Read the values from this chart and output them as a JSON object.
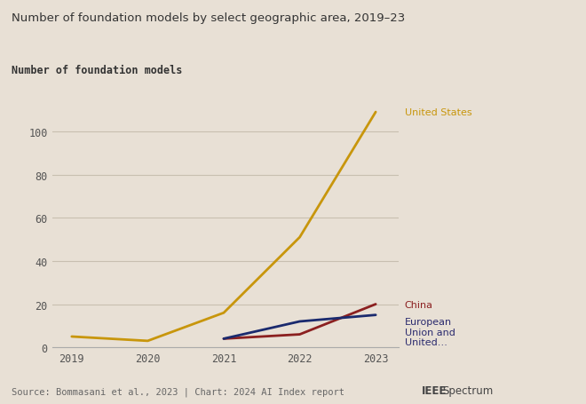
{
  "title": "Number of foundation models by select geographic area, 2019–23",
  "ylabel": "Number of foundation models",
  "background_color": "#e8e0d5",
  "plot_bg_color": "#e8e0d5",
  "years": [
    2019,
    2020,
    2021,
    2022,
    2023
  ],
  "series": [
    {
      "label": "United States",
      "color": "#c8960c",
      "values": [
        5,
        3,
        16,
        51,
        109
      ],
      "label_color": "#c8960c"
    },
    {
      "label": "China",
      "color": "#8b2020",
      "values": [
        null,
        null,
        4,
        6,
        20
      ],
      "label_color": "#8b2020"
    },
    {
      "label": "European\nUnion and\nUnited…",
      "color": "#1a2a6e",
      "values": [
        null,
        null,
        4,
        12,
        15
      ],
      "label_color": "#2a2a6e"
    }
  ],
  "ylim": [
    0,
    120
  ],
  "yticks": [
    0,
    20,
    40,
    60,
    80,
    100
  ],
  "source_text": "Source: Bommasani et al., 2023 | Chart: 2024 AI Index report",
  "grid_color": "#c8bfb0"
}
